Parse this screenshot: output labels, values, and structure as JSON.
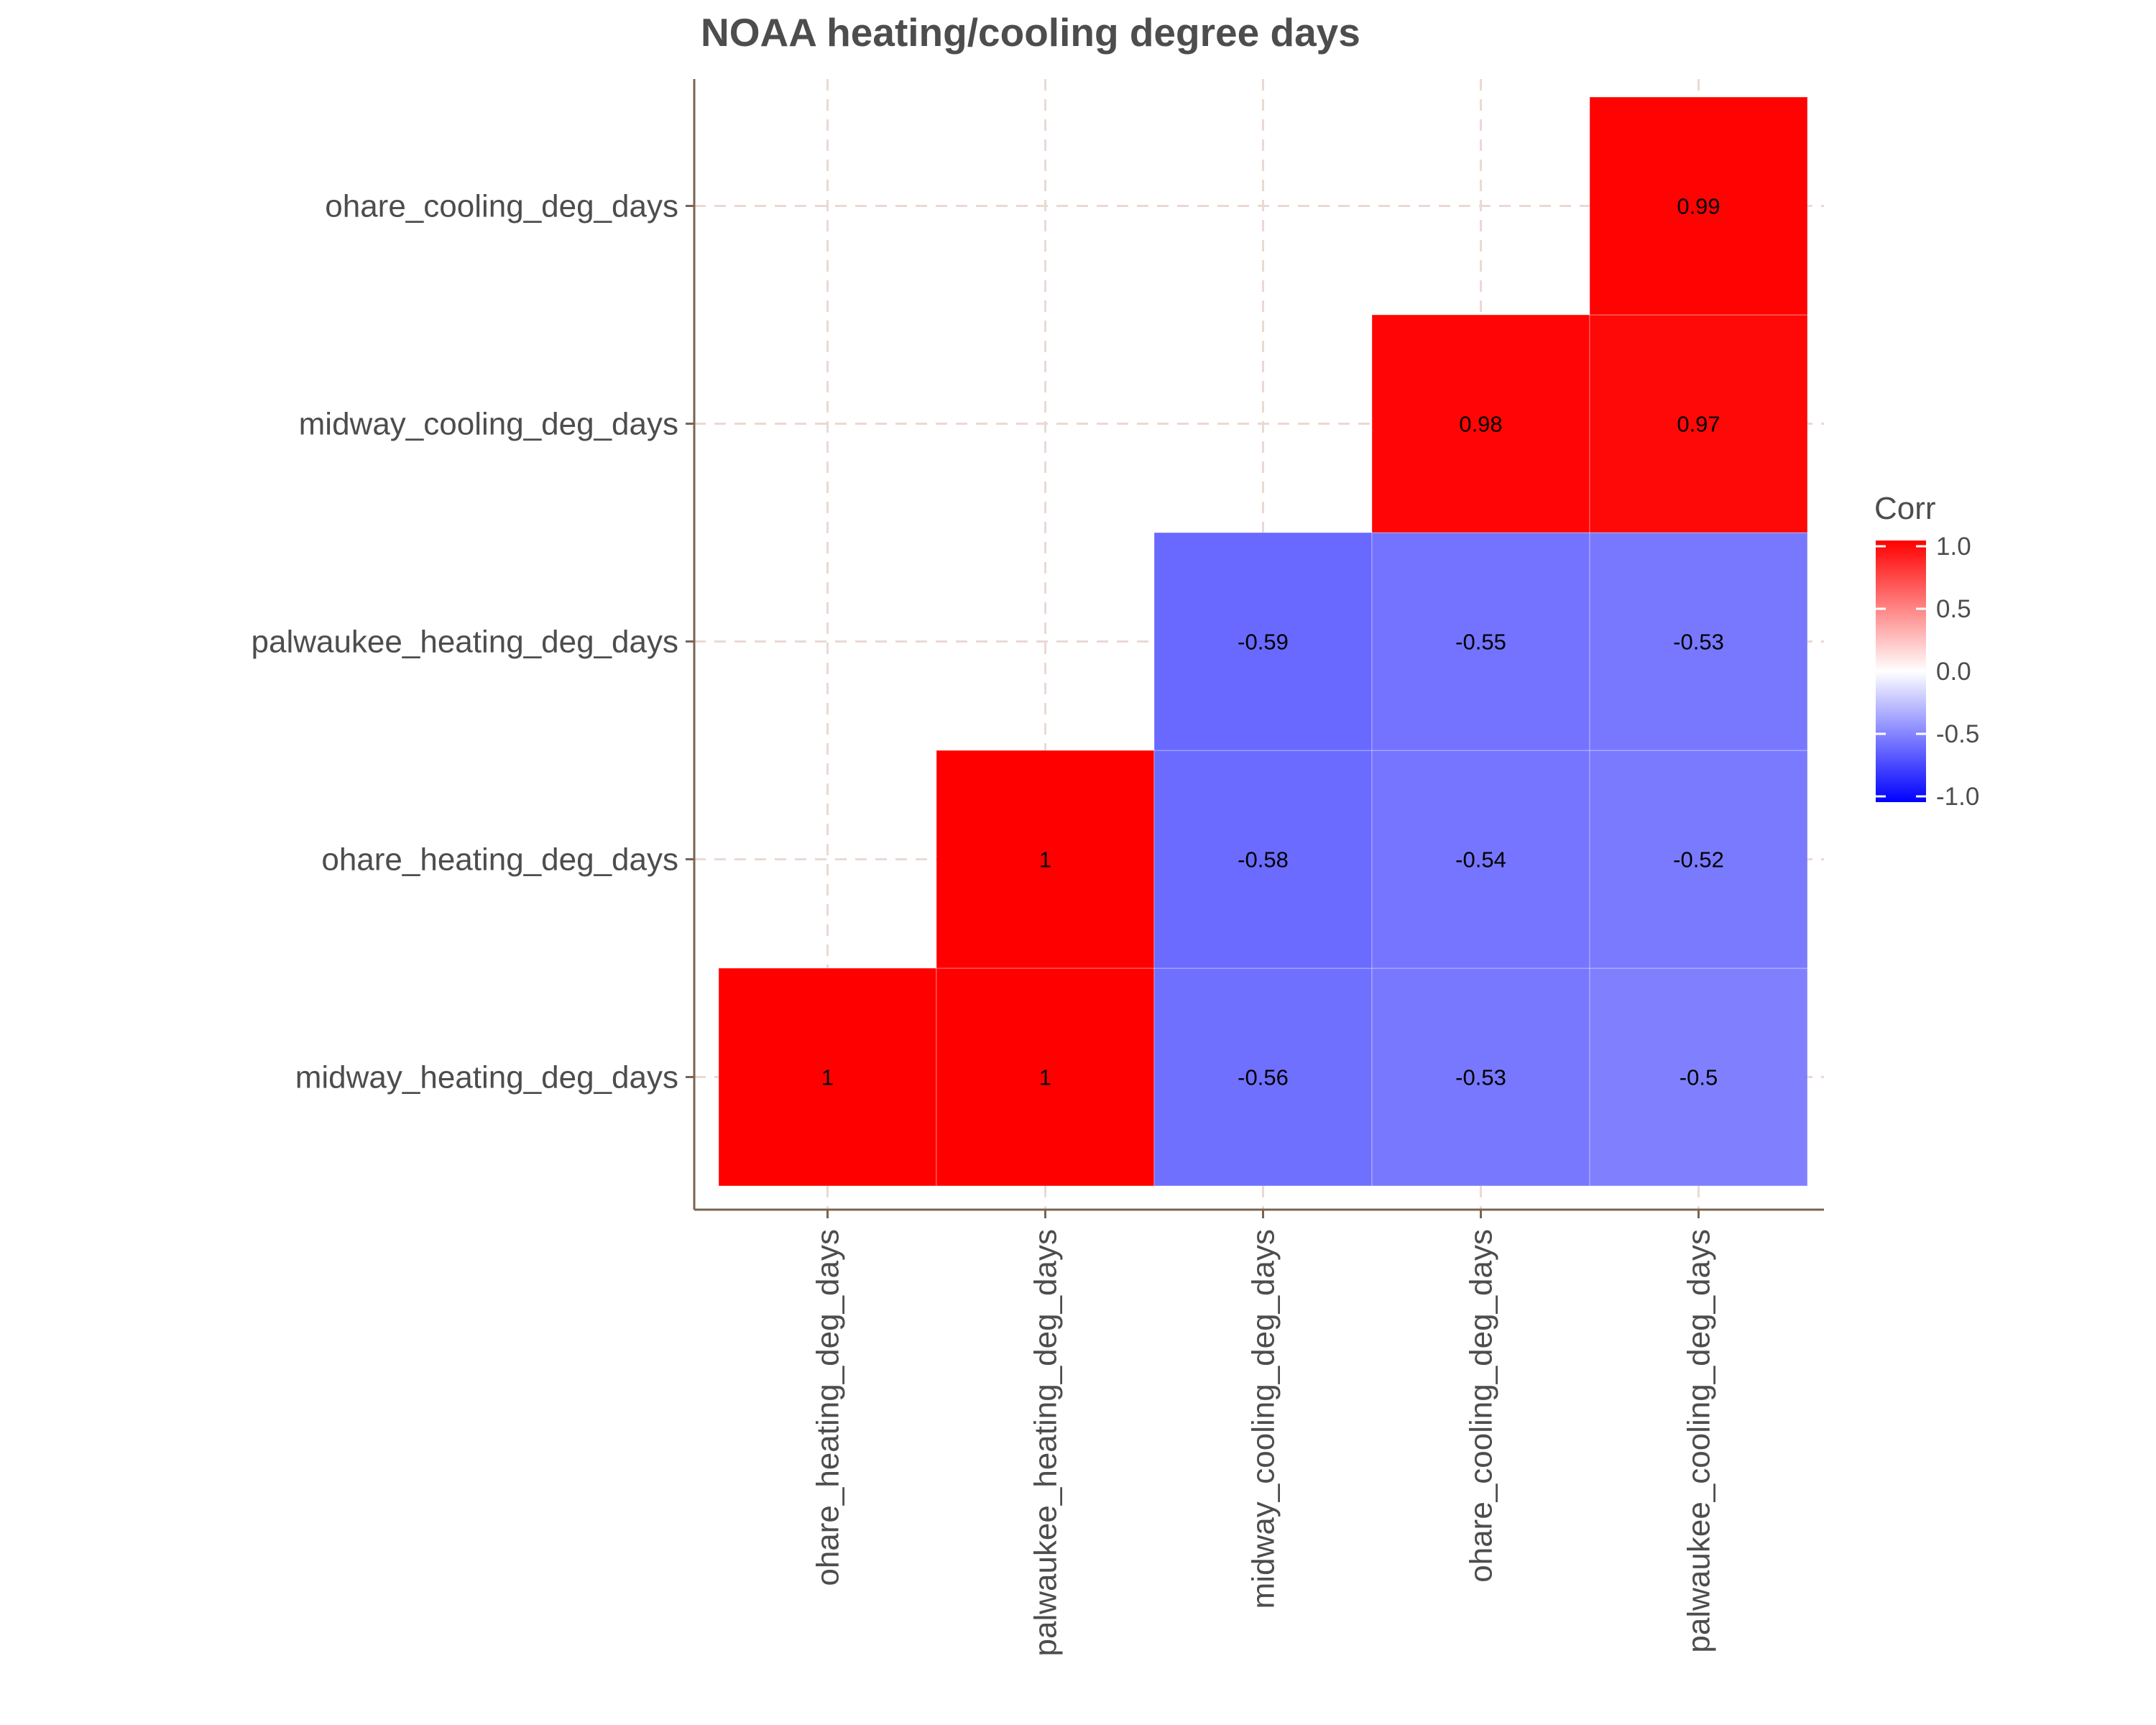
{
  "chart_data": {
    "type": "heatmap",
    "title": "NOAA heating/cooling degree days",
    "x_categories": [
      "ohare_heating_deg_days",
      "palwaukee_heating_deg_days",
      "midway_cooling_deg_days",
      "ohare_cooling_deg_days",
      "palwaukee_cooling_deg_days"
    ],
    "y_categories": [
      "midway_heating_deg_days",
      "ohare_heating_deg_days",
      "palwaukee_heating_deg_days",
      "midway_cooling_deg_days",
      "ohare_cooling_deg_days"
    ],
    "cells": [
      {
        "x": "ohare_heating_deg_days",
        "y": "midway_heating_deg_days",
        "value": 1,
        "label": "1"
      },
      {
        "x": "palwaukee_heating_deg_days",
        "y": "midway_heating_deg_days",
        "value": 1,
        "label": "1"
      },
      {
        "x": "midway_cooling_deg_days",
        "y": "midway_heating_deg_days",
        "value": -0.56,
        "label": "-0.56"
      },
      {
        "x": "ohare_cooling_deg_days",
        "y": "midway_heating_deg_days",
        "value": -0.53,
        "label": "-0.53"
      },
      {
        "x": "palwaukee_cooling_deg_days",
        "y": "midway_heating_deg_days",
        "value": -0.5,
        "label": "-0.5"
      },
      {
        "x": "palwaukee_heating_deg_days",
        "y": "ohare_heating_deg_days",
        "value": 1,
        "label": "1"
      },
      {
        "x": "midway_cooling_deg_days",
        "y": "ohare_heating_deg_days",
        "value": -0.58,
        "label": "-0.58"
      },
      {
        "x": "ohare_cooling_deg_days",
        "y": "ohare_heating_deg_days",
        "value": -0.54,
        "label": "-0.54"
      },
      {
        "x": "palwaukee_cooling_deg_days",
        "y": "ohare_heating_deg_days",
        "value": -0.52,
        "label": "-0.52"
      },
      {
        "x": "midway_cooling_deg_days",
        "y": "palwaukee_heating_deg_days",
        "value": -0.59,
        "label": "-0.59"
      },
      {
        "x": "ohare_cooling_deg_days",
        "y": "palwaukee_heating_deg_days",
        "value": -0.55,
        "label": "-0.55"
      },
      {
        "x": "palwaukee_cooling_deg_days",
        "y": "palwaukee_heating_deg_days",
        "value": -0.53,
        "label": "-0.53"
      },
      {
        "x": "ohare_cooling_deg_days",
        "y": "midway_cooling_deg_days",
        "value": 0.98,
        "label": "0.98"
      },
      {
        "x": "palwaukee_cooling_deg_days",
        "y": "midway_cooling_deg_days",
        "value": 0.97,
        "label": "0.97"
      },
      {
        "x": "palwaukee_cooling_deg_days",
        "y": "ohare_cooling_deg_days",
        "value": 0.99,
        "label": "0.99"
      }
    ],
    "legend": {
      "title": "Corr",
      "placement": "right",
      "range": [
        -1,
        1
      ],
      "ticks": [
        1,
        0.5,
        0,
        -0.5,
        -1
      ],
      "tick_labels": [
        "1.0",
        "0.5",
        "0.0",
        "-0.5",
        "-1.0"
      ],
      "colors": {
        "low": "#0000ff",
        "mid": "#ffffff",
        "high": "#ff0000"
      }
    },
    "grid": true
  }
}
